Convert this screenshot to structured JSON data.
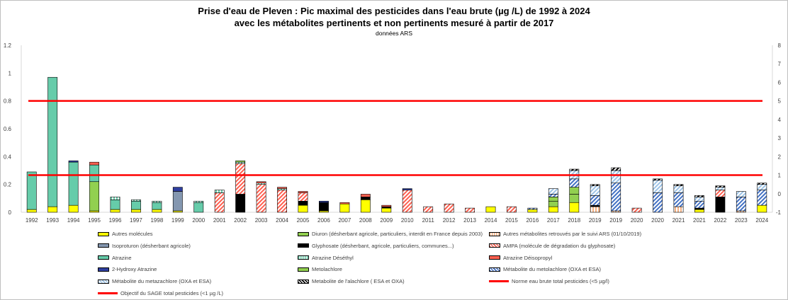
{
  "title_line1": "Prise d'eau de Pleven : Pic maximal des pesticides dans l'eau brute (µg /L) de 1992 à 2024",
  "title_line2": "avec les métabolites pertinents et non pertinents mesuré à partir de 2017",
  "subtitle": "données ARS",
  "chart_data": {
    "type": "bar",
    "stacked": true,
    "categories": [
      "1992",
      "1993",
      "1994",
      "1995",
      "1996",
      "1997",
      "1998",
      "1999",
      "2000",
      "2001",
      "2002",
      "2003",
      "2004",
      "2005",
      "2006",
      "2007",
      "2008",
      "2009",
      "2010",
      "2011",
      "2012",
      "2013",
      "2014",
      "2015",
      "2016",
      "2017",
      "2018",
      "2019",
      "2019",
      "2020",
      "2020",
      "2021",
      "2021",
      "2022",
      "2023",
      "2024"
    ],
    "y_left": {
      "min": 0,
      "max": 1.2,
      "ticks": [
        "0",
        "0.2",
        "0.4",
        "0.6",
        "0.8",
        "1",
        "1.2"
      ]
    },
    "y_right": {
      "min": -1,
      "max": 8,
      "ticks": [
        "-1",
        "0",
        "1",
        "2",
        "3",
        "4",
        "5",
        "6",
        "7",
        "8"
      ]
    },
    "grid": false,
    "legend_position": "bottom",
    "series": [
      {
        "name": "Autres molécules",
        "color": "#ffff00",
        "pattern": "solid",
        "values": [
          0.02,
          0.04,
          0.05,
          0.01,
          0.02,
          0.02,
          0.02,
          0.01,
          0,
          0,
          0,
          0,
          0,
          0.05,
          0.01,
          0.06,
          0.09,
          0.03,
          0,
          0,
          0,
          0,
          0.04,
          0,
          0.02,
          0.04,
          0.07,
          0,
          0,
          0,
          0,
          0,
          0.02,
          0,
          0,
          0.05
        ]
      },
      {
        "name": "Diuron (désherbant agricole, particuliers, interdit en France depuis 2003)",
        "color": "#92d050",
        "pattern": "solid",
        "values": [
          0,
          0,
          0,
          0.21,
          0,
          0,
          0,
          0,
          0,
          0,
          0,
          0,
          0,
          0,
          0,
          0,
          0,
          0,
          0,
          0,
          0,
          0,
          0,
          0,
          0,
          0.04,
          0.06,
          0,
          0,
          0,
          0,
          0,
          0,
          0,
          0,
          0
        ]
      },
      {
        "name": "Autres métabolites retrouvés par le suivi ARS (01/10/2019)",
        "color": "#f4b183",
        "pattern": "vertical",
        "values": [
          0,
          0,
          0,
          0,
          0,
          0,
          0,
          0,
          0,
          0,
          0,
          0,
          0,
          0,
          0,
          0,
          0,
          0,
          0,
          0,
          0,
          0,
          0,
          0,
          0,
          0,
          0,
          0.04,
          0.01,
          0,
          0,
          0.04,
          0,
          0,
          0.01,
          0
        ]
      },
      {
        "name": "Isoproturon (désherbant agricole)",
        "color": "#8497b0",
        "pattern": "solid",
        "values": [
          0,
          0,
          0,
          0,
          0,
          0,
          0,
          0.14,
          0,
          0,
          0,
          0,
          0,
          0,
          0,
          0,
          0,
          0,
          0,
          0,
          0,
          0,
          0,
          0,
          0,
          0,
          0,
          0,
          0,
          0,
          0,
          0,
          0,
          0,
          0,
          0
        ]
      },
      {
        "name": "Glyphosate (désherbant, agricole, particuliers, communes...)",
        "color": "#000000",
        "pattern": "solid",
        "values": [
          0,
          0,
          0,
          0,
          0,
          0,
          0,
          0,
          0,
          0,
          0.13,
          0,
          0,
          0.03,
          0.06,
          0,
          0.02,
          0.01,
          0,
          0,
          0,
          0,
          0,
          0,
          0,
          0,
          0,
          0.01,
          0,
          0,
          0,
          0,
          0.01,
          0.11,
          0,
          0
        ]
      },
      {
        "name": "AMPA (molécule de dégradation du glyphosate)",
        "color": "#ff6050",
        "pattern": "diagonal",
        "values": [
          0,
          0,
          0,
          0,
          0,
          0,
          0,
          0,
          0,
          0.14,
          0.22,
          0.2,
          0.16,
          0.06,
          0,
          0,
          0,
          0,
          0.16,
          0.04,
          0.06,
          0.03,
          0,
          0.04,
          0,
          0,
          0,
          0,
          0,
          0.03,
          0,
          0,
          0,
          0.05,
          0,
          0
        ]
      },
      {
        "name": "Atrazine",
        "color": "#66ccaa",
        "pattern": "solid",
        "values": [
          0.27,
          0.93,
          0.31,
          0.12,
          0.07,
          0.06,
          0.05,
          0,
          0.07,
          0,
          0,
          0,
          0,
          0,
          0,
          0,
          0,
          0,
          0,
          0,
          0,
          0,
          0,
          0,
          0,
          0,
          0,
          0,
          0,
          0,
          0,
          0,
          0,
          0,
          0,
          0
        ]
      },
      {
        "name": "Atrazine Déséthyl",
        "color": "#66ccaa",
        "pattern": "vertical",
        "values": [
          0,
          0,
          0,
          0,
          0.02,
          0.01,
          0.01,
          0,
          0.01,
          0.02,
          0.01,
          0.01,
          0.01,
          0,
          0,
          0,
          0,
          0,
          0,
          0,
          0,
          0,
          0,
          0,
          0,
          0,
          0,
          0,
          0,
          0,
          0,
          0,
          0,
          0,
          0,
          0
        ]
      },
      {
        "name": "Atrazine Déisopropyl",
        "color": "#ff6050",
        "pattern": "solid",
        "values": [
          0,
          0,
          0,
          0.02,
          0,
          0,
          0,
          0,
          0,
          0,
          0,
          0.01,
          0.01,
          0.01,
          0,
          0.01,
          0.02,
          0.01,
          0,
          0,
          0,
          0,
          0,
          0,
          0,
          0,
          0,
          0,
          0,
          0,
          0,
          0,
          0,
          0,
          0,
          0
        ]
      },
      {
        "name": "2-Hydroxy Atrazine",
        "color": "#2f3f9f",
        "pattern": "solid",
        "values": [
          0,
          0,
          0.01,
          0,
          0,
          0,
          0,
          0.03,
          0,
          0,
          0,
          0,
          0,
          0,
          0.01,
          0,
          0,
          0,
          0.01,
          0,
          0,
          0,
          0,
          0,
          0,
          0,
          0,
          0,
          0,
          0,
          0,
          0,
          0,
          0,
          0,
          0
        ]
      },
      {
        "name": "Metolachlore",
        "color": "#92d050",
        "pattern": "solid",
        "values": [
          0,
          0,
          0,
          0,
          0,
          0,
          0,
          0,
          0,
          0,
          0.01,
          0,
          0,
          0,
          0,
          0,
          0,
          0,
          0,
          0,
          0,
          0,
          0,
          0,
          0,
          0.03,
          0.05,
          0,
          0,
          0,
          0,
          0,
          0,
          0,
          0,
          0
        ]
      },
      {
        "name": "Métabolite du metolachlore (OXA et ESA)",
        "color": "#4472c4",
        "pattern": "diagonal",
        "values": [
          0,
          0,
          0,
          0,
          0,
          0,
          0,
          0,
          0,
          0,
          0,
          0,
          0,
          0,
          0,
          0,
          0,
          0,
          0,
          0,
          0,
          0,
          0,
          0,
          0.01,
          0.02,
          0.06,
          0.07,
          0.2,
          0,
          0.14,
          0.1,
          0.05,
          0,
          0.1,
          0.11
        ]
      },
      {
        "name": "Métabolite du metazachlore (OXA et ESA)",
        "color": "#9dc3e6",
        "pattern": "diagonal",
        "values": [
          0,
          0,
          0,
          0,
          0,
          0,
          0,
          0,
          0,
          0,
          0,
          0,
          0,
          0,
          0,
          0,
          0,
          0,
          0,
          0,
          0,
          0,
          0,
          0,
          0,
          0.04,
          0.06,
          0.07,
          0.09,
          0,
          0.09,
          0.05,
          0.03,
          0.02,
          0.04,
          0.04
        ]
      },
      {
        "name": "Metabolite de l'alachlore ( ESA et OXA)",
        "color": "#000000",
        "pattern": "diagonal",
        "values": [
          0,
          0,
          0,
          0,
          0,
          0,
          0,
          0,
          0,
          0,
          0,
          0,
          0,
          0,
          0,
          0,
          0,
          0,
          0,
          0,
          0,
          0,
          0,
          0,
          0,
          0,
          0.01,
          0.01,
          0.02,
          0,
          0.01,
          0.01,
          0.01,
          0.01,
          0,
          0.01
        ]
      }
    ],
    "reference_lines": [
      {
        "name": "Norme eau brute total pesticides (<5 µg/l)",
        "axis": "right",
        "value": 5,
        "color": "#ff0000"
      },
      {
        "name": "Objectif du SAGE total pesticides (<1 µg /L)",
        "axis": "right",
        "value": 1,
        "color": "#ff0000"
      }
    ]
  }
}
